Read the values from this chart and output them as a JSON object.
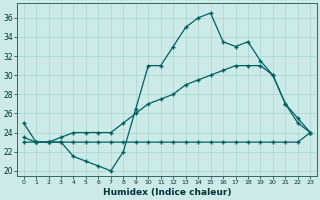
{
  "xlabel": "Humidex (Indice chaleur)",
  "bg_color": "#cceae7",
  "grid_color": "#aad4d0",
  "line_color": "#006060",
  "xlim": [
    -0.5,
    23.5
  ],
  "ylim": [
    19.5,
    37.5
  ],
  "xticks": [
    0,
    1,
    2,
    3,
    4,
    5,
    6,
    7,
    8,
    9,
    10,
    11,
    12,
    13,
    14,
    15,
    16,
    17,
    18,
    19,
    20,
    21,
    22,
    23
  ],
  "yticks": [
    20,
    22,
    24,
    26,
    28,
    30,
    32,
    34,
    36
  ],
  "line1_x": [
    0,
    1,
    2,
    3,
    4,
    5,
    6,
    7,
    8,
    9,
    10,
    11,
    12,
    13,
    14,
    15,
    16,
    17,
    18,
    19,
    20,
    21,
    22,
    23
  ],
  "line1_y": [
    25,
    23,
    23,
    23,
    21.5,
    21,
    20.5,
    20,
    22,
    26.5,
    31,
    31,
    33,
    35,
    36,
    36.5,
    33.5,
    33,
    33.5,
    31.5,
    30,
    27,
    25.5,
    24
  ],
  "line2_x": [
    0,
    1,
    2,
    3,
    4,
    5,
    6,
    7,
    8,
    9,
    10,
    11,
    12,
    13,
    14,
    15,
    16,
    17,
    18,
    19,
    20,
    21,
    22,
    23
  ],
  "line2_y": [
    23,
    23,
    23,
    23,
    23,
    23,
    23,
    23,
    23,
    23,
    23,
    23,
    23,
    23,
    23,
    23,
    23,
    23,
    23,
    23,
    23,
    23,
    23,
    24
  ],
  "line3_x": [
    0,
    1,
    2,
    3,
    4,
    5,
    6,
    7,
    8,
    9,
    10,
    11,
    12,
    13,
    14,
    15,
    16,
    17,
    18,
    19,
    20,
    21,
    22,
    23
  ],
  "line3_y": [
    23.5,
    23,
    23,
    23.5,
    24,
    24,
    24,
    24,
    25,
    26,
    27,
    27.5,
    28,
    29,
    29.5,
    30,
    30.5,
    31,
    31,
    31,
    30,
    27,
    25,
    24
  ]
}
